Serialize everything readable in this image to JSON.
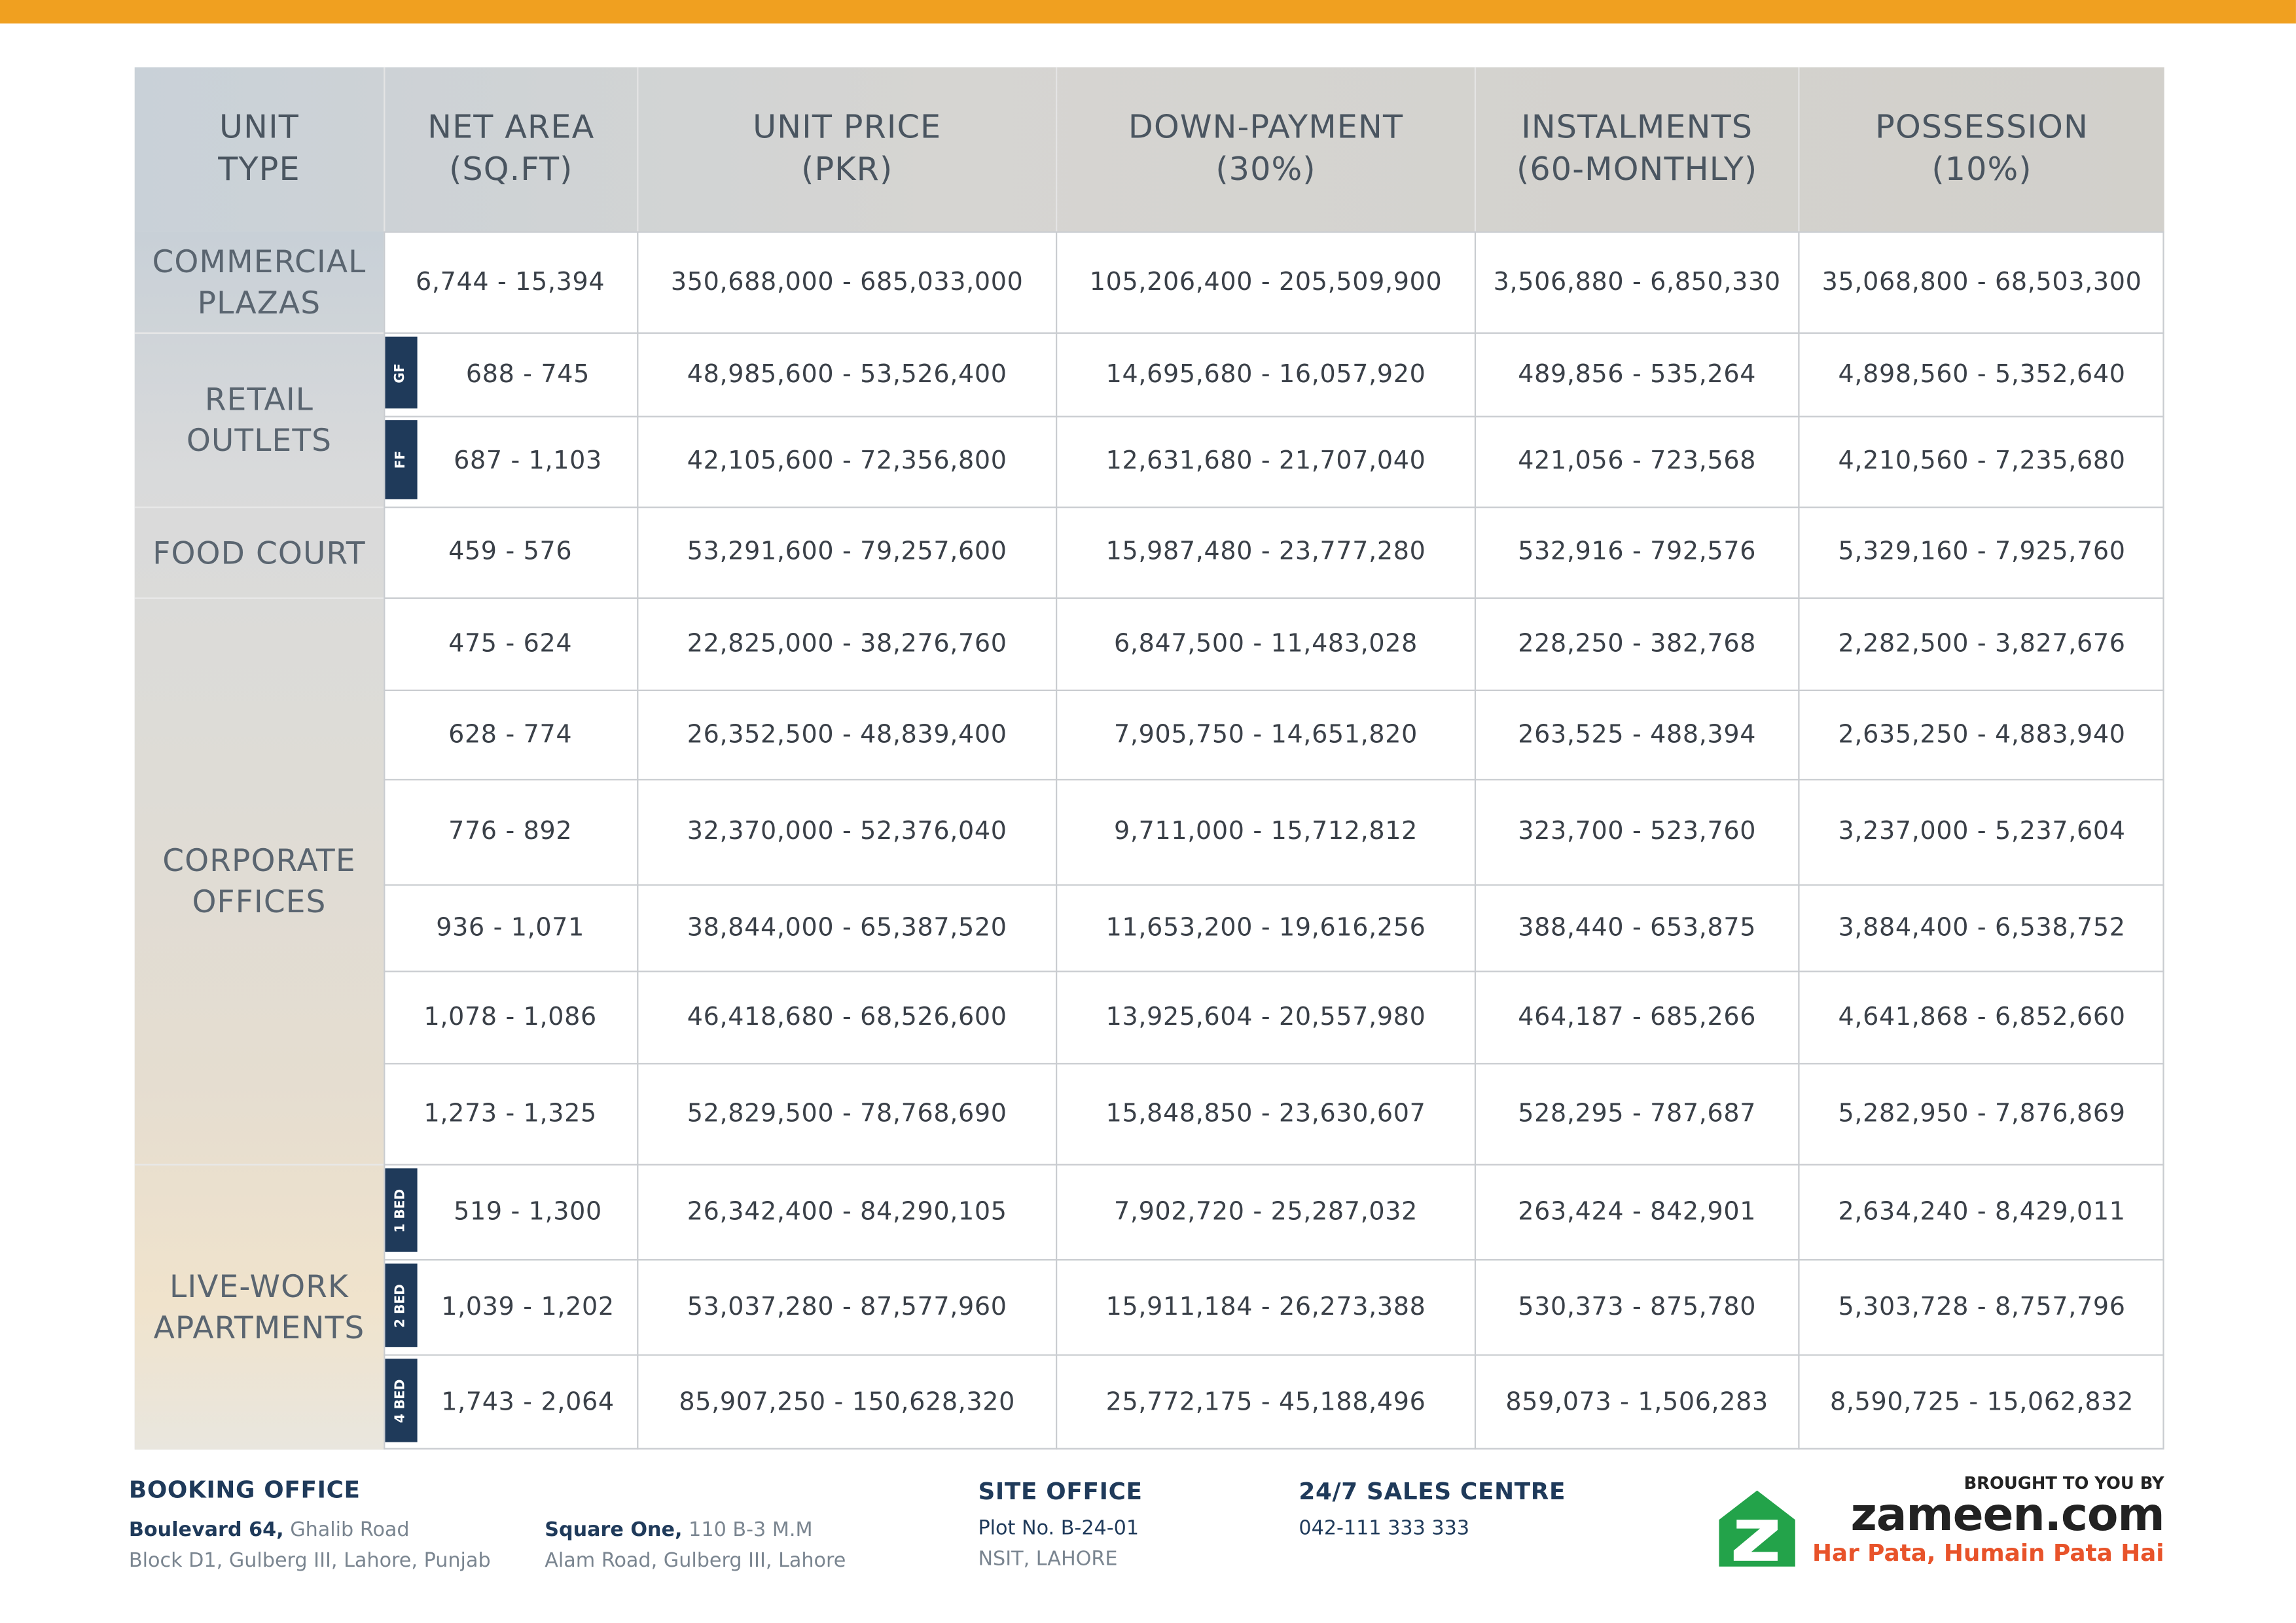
{
  "table": {
    "headers": [
      [
        "UNIT",
        "TYPE"
      ],
      [
        "NET AREA",
        "(SQ.FT)"
      ],
      [
        "UNIT PRICE",
        "(PKR)"
      ],
      [
        "DOWN-PAYMENT",
        "(30%)"
      ],
      [
        "INSTALMENTS",
        "(60-MONTHLY)"
      ],
      [
        "POSSESSION",
        "(10%)"
      ]
    ],
    "groups": [
      {
        "label": [
          "COMMERCIAL",
          "PLAZAS"
        ],
        "rows": [
          {
            "cells": [
              "6,744 - 15,394",
              "350,688,000 - 685,033,000",
              "105,206,400 - 205,509,900",
              "3,506,880 - 6,850,330",
              "35,068,800 - 68,503,300"
            ]
          }
        ]
      },
      {
        "label": [
          "RETAIL",
          "OUTLETS"
        ],
        "rows": [
          {
            "tag": "GF",
            "cells": [
              "688 - 745",
              "48,985,600 - 53,526,400",
              "14,695,680 - 16,057,920",
              "489,856 - 535,264",
              "4,898,560 - 5,352,640"
            ]
          },
          {
            "tag": "FF",
            "cells": [
              "687 - 1,103",
              "42,105,600 - 72,356,800",
              "12,631,680 - 21,707,040",
              "421,056 - 723,568",
              "4,210,560 - 7,235,680"
            ]
          }
        ]
      },
      {
        "label": [
          "FOOD COURT"
        ],
        "rows": [
          {
            "cells": [
              "459 - 576",
              "53,291,600 - 79,257,600",
              "15,987,480 - 23,777,280",
              "532,916 - 792,576",
              "5,329,160 - 7,925,760"
            ]
          }
        ]
      },
      {
        "label": [
          "CORPORATE",
          "OFFICES"
        ],
        "rows": [
          {
            "cells": [
              "475 - 624",
              "22,825,000 - 38,276,760",
              "6,847,500 - 11,483,028",
              "228,250 - 382,768",
              "2,282,500 - 3,827,676"
            ]
          },
          {
            "cells": [
              "628 - 774",
              "26,352,500 - 48,839,400",
              "7,905,750 - 14,651,820",
              "263,525 - 488,394",
              "2,635,250 - 4,883,940"
            ]
          },
          {
            "cells": [
              "776 - 892",
              "32,370,000 - 52,376,040",
              "9,711,000 - 15,712,812",
              "323,700 - 523,760",
              "3,237,000 - 5,237,604"
            ]
          },
          {
            "cells": [
              "936 - 1,071",
              "38,844,000 - 65,387,520",
              "11,653,200 - 19,616,256",
              "388,440 - 653,875",
              "3,884,400 - 6,538,752"
            ]
          },
          {
            "cells": [
              "1,078 - 1,086",
              "46,418,680 - 68,526,600",
              "13,925,604 - 20,557,980",
              "464,187 - 685,266",
              "4,641,868 - 6,852,660"
            ]
          },
          {
            "cells": [
              "1,273 - 1,325",
              "52,829,500 - 78,768,690",
              "15,848,850 - 23,630,607",
              "528,295 - 787,687",
              "5,282,950 - 7,876,869"
            ]
          }
        ]
      },
      {
        "label": [
          "LIVE-WORK",
          "APARTMENTS"
        ],
        "rows": [
          {
            "tag": "1 BED",
            "cells": [
              "519 - 1,300",
              "26,342,400 - 84,290,105",
              "7,902,720 - 25,287,032",
              "263,424 - 842,901",
              "2,634,240 - 8,429,011"
            ]
          },
          {
            "tag": "2 BED",
            "cells": [
              "1,039 - 1,202",
              "53,037,280 - 87,577,960",
              "15,911,184 - 26,273,388",
              "530,373 - 875,780",
              "5,303,728 - 8,757,796"
            ]
          },
          {
            "tag": "4 BED",
            "cells": [
              "1,743 - 2,064",
              "85,907,250 - 150,628,320",
              "25,772,175 - 45,188,496",
              "859,073 - 1,506,283",
              "8,590,725 - 15,062,832"
            ]
          }
        ]
      }
    ]
  },
  "footer": {
    "booking": {
      "title": "BOOKING OFFICE",
      "addresses": [
        {
          "bold": "Boulevard 64,",
          "rest": "Ghalib Road",
          "line2": "Block D1, Gulberg III, Lahore, Punjab"
        },
        {
          "bold": "Square One,",
          "rest": "110 B-3 M.M",
          "line2": "Alam Road, Gulberg III, Lahore"
        }
      ]
    },
    "site": {
      "title": "SITE OFFICE",
      "line1": "Plot No. B-24-01",
      "line2": "NSIT, LAHORE"
    },
    "sales": {
      "title": "24/7 SALES CENTRE",
      "phone": "042-111 333 333"
    },
    "brand": {
      "intro": "BROUGHT TO YOU BY",
      "name": "zameen.com",
      "slogan": "Har Pata, Humain Pata Hai"
    }
  }
}
